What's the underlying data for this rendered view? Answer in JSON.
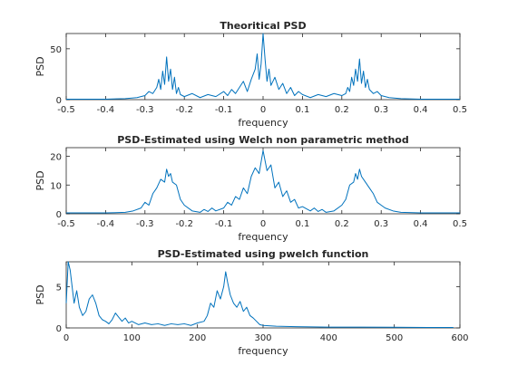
{
  "chart_data": [
    {
      "type": "line",
      "title": "Theoritical PSD",
      "xlabel": "frequency",
      "ylabel": "PSD",
      "xlim": [
        -0.5,
        0.5
      ],
      "ylim": [
        0,
        65
      ],
      "xticks": [
        -0.5,
        -0.4,
        -0.3,
        -0.2,
        -0.1,
        0,
        0.1,
        0.2,
        0.3,
        0.4,
        0.5
      ],
      "xtick_labels": [
        "-0.5",
        "-0.4",
        "-0.3",
        "-0.2",
        "-0.1",
        "0",
        "0.1",
        "0.2",
        "0.3",
        "0.4",
        "0.5"
      ],
      "yticks": [
        0,
        50
      ],
      "ytick_labels": [
        "0",
        "50"
      ],
      "color": "#0072bd",
      "series": [
        {
          "x": [
            -0.5,
            -0.45,
            -0.4,
            -0.35,
            -0.32,
            -0.3,
            -0.29,
            -0.28,
            -0.27,
            -0.265,
            -0.26,
            -0.255,
            -0.25,
            -0.245,
            -0.24,
            -0.235,
            -0.23,
            -0.225,
            -0.22,
            -0.215,
            -0.21,
            -0.2,
            -0.18,
            -0.16,
            -0.14,
            -0.12,
            -0.1,
            -0.09,
            -0.08,
            -0.07,
            -0.06,
            -0.05,
            -0.04,
            -0.03,
            -0.02,
            -0.015,
            -0.01,
            -0.005,
            0,
            0.005,
            0.01,
            0.015,
            0.02,
            0.03,
            0.04,
            0.05,
            0.06,
            0.07,
            0.08,
            0.09,
            0.1,
            0.12,
            0.14,
            0.16,
            0.18,
            0.2,
            0.21,
            0.215,
            0.22,
            0.225,
            0.23,
            0.235,
            0.24,
            0.245,
            0.25,
            0.255,
            0.26,
            0.265,
            0.27,
            0.28,
            0.29,
            0.3,
            0.32,
            0.35,
            0.4,
            0.45,
            0.5
          ],
          "y": [
            0.5,
            0.5,
            0.5,
            1,
            2,
            4,
            8,
            6,
            12,
            20,
            10,
            28,
            15,
            42,
            18,
            30,
            10,
            22,
            6,
            12,
            5,
            3,
            6,
            2,
            5,
            3,
            8,
            4,
            10,
            6,
            12,
            18,
            8,
            20,
            30,
            45,
            20,
            35,
            65,
            40,
            18,
            30,
            14,
            22,
            10,
            16,
            6,
            12,
            4,
            8,
            5,
            2,
            5,
            3,
            6,
            4,
            6,
            12,
            8,
            22,
            14,
            30,
            18,
            40,
            16,
            28,
            12,
            20,
            10,
            6,
            8,
            4,
            2,
            1,
            0.5,
            0.5,
            0.5
          ]
        }
      ]
    },
    {
      "type": "line",
      "title": "PSD-Estimated using Welch non parametric method",
      "xlabel": "frequency",
      "ylabel": "PSD",
      "xlim": [
        -0.5,
        0.5
      ],
      "ylim": [
        0,
        23
      ],
      "xticks": [
        -0.5,
        -0.4,
        -0.3,
        -0.2,
        -0.1,
        0,
        0.1,
        0.2,
        0.3,
        0.4,
        0.5
      ],
      "xtick_labels": [
        "-0.5",
        "-0.4",
        "-0.3",
        "-0.2",
        "-0.1",
        "0",
        "0.1",
        "0.2",
        "0.3",
        "0.4",
        "0.5"
      ],
      "yticks": [
        0,
        10,
        20
      ],
      "ytick_labels": [
        "0",
        "10",
        "20"
      ],
      "color": "#0072bd",
      "series": [
        {
          "x": [
            -0.5,
            -0.45,
            -0.4,
            -0.35,
            -0.33,
            -0.31,
            -0.3,
            -0.29,
            -0.28,
            -0.27,
            -0.26,
            -0.25,
            -0.245,
            -0.24,
            -0.235,
            -0.23,
            -0.22,
            -0.21,
            -0.2,
            -0.18,
            -0.16,
            -0.15,
            -0.14,
            -0.13,
            -0.12,
            -0.1,
            -0.09,
            -0.08,
            -0.07,
            -0.06,
            -0.05,
            -0.04,
            -0.03,
            -0.02,
            -0.01,
            0,
            0.01,
            0.02,
            0.03,
            0.04,
            0.05,
            0.06,
            0.07,
            0.08,
            0.09,
            0.1,
            0.12,
            0.13,
            0.14,
            0.15,
            0.16,
            0.18,
            0.2,
            0.21,
            0.22,
            0.23,
            0.235,
            0.24,
            0.245,
            0.25,
            0.26,
            0.27,
            0.28,
            0.29,
            0.3,
            0.31,
            0.33,
            0.35,
            0.4,
            0.45,
            0.5
          ],
          "y": [
            0.3,
            0.3,
            0.3,
            0.5,
            1,
            2,
            4,
            3,
            7,
            9,
            12,
            11,
            15.5,
            13,
            14,
            11,
            10,
            5,
            3,
            1,
            0.5,
            1.5,
            0.8,
            2,
            1,
            2,
            4,
            3,
            6,
            5,
            9,
            7,
            13,
            16,
            14,
            22,
            15,
            17,
            9,
            11,
            6,
            8,
            4,
            5,
            2,
            2.5,
            1,
            2,
            0.8,
            1.5,
            0.5,
            1,
            3,
            5,
            10,
            11,
            14,
            12,
            15.5,
            13,
            11,
            9,
            7,
            4,
            3,
            2,
            1,
            0.5,
            0.3,
            0.3,
            0.3
          ]
        }
      ]
    },
    {
      "type": "line",
      "title": "PSD-Estimated using pwelch function",
      "xlabel": "frequency",
      "ylabel": "PSD",
      "xlim": [
        0,
        600
      ],
      "ylim": [
        0,
        8
      ],
      "xticks": [
        0,
        100,
        200,
        300,
        400,
        500,
        600
      ],
      "xtick_labels": [
        "0",
        "100",
        "200",
        "300",
        "400",
        "500",
        "600"
      ],
      "yticks": [
        0,
        5
      ],
      "ytick_labels": [
        "0",
        "5"
      ],
      "color": "#0072bd",
      "series": [
        {
          "x": [
            0,
            3,
            6,
            9,
            12,
            16,
            20,
            25,
            30,
            35,
            40,
            45,
            50,
            55,
            60,
            65,
            70,
            75,
            80,
            85,
            90,
            95,
            100,
            110,
            120,
            130,
            140,
            150,
            160,
            170,
            180,
            190,
            200,
            210,
            215,
            220,
            225,
            230,
            235,
            240,
            243,
            246,
            250,
            255,
            260,
            265,
            270,
            275,
            280,
            285,
            290,
            295,
            300,
            320,
            350,
            400,
            450,
            500,
            550,
            590
          ],
          "y": [
            3,
            8,
            7,
            5,
            3,
            4.5,
            2.5,
            1.5,
            2,
            3.5,
            4,
            3,
            1.5,
            1,
            0.8,
            0.5,
            1,
            1.8,
            1.3,
            0.8,
            1.2,
            0.6,
            0.8,
            0.4,
            0.6,
            0.4,
            0.5,
            0.3,
            0.5,
            0.4,
            0.5,
            0.3,
            0.6,
            0.8,
            1.5,
            3,
            2.5,
            4.5,
            3.5,
            5,
            6.8,
            5.5,
            4,
            3,
            2.5,
            3.2,
            2,
            2.5,
            1.5,
            1.2,
            0.8,
            0.4,
            0.3,
            0.2,
            0.15,
            0.1,
            0.1,
            0.08,
            0.05,
            0.05
          ]
        }
      ]
    }
  ]
}
